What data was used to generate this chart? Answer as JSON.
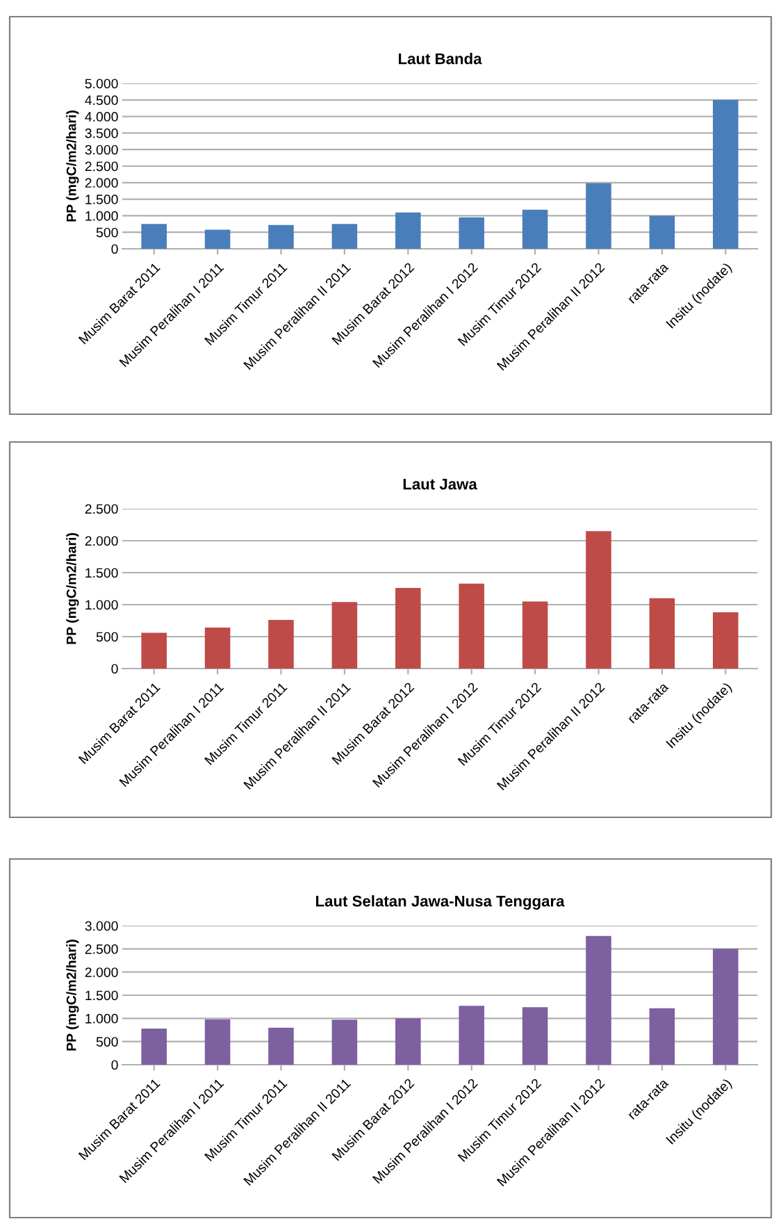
{
  "chart_data": [
    {
      "type": "bar",
      "title": "Laut Banda",
      "ylabel": "PP (mgC/m2/hari)",
      "categories": [
        "Musim Barat 2011",
        "Musim Peralihan I 2011",
        "Musim Timur 2011",
        "Musim Peralihan II 2011",
        "Musim Barat 2012",
        "Musim Peralihan I 2012",
        "Musim Timur 2012",
        "Musim Peralihan II 2012",
        "rata-rata",
        "Insitu (nodate)"
      ],
      "series": [
        {
          "color": "#4a7ebb",
          "values": [
            750,
            580,
            720,
            750,
            1100,
            950,
            1180,
            1980,
            1000,
            4500
          ]
        }
      ],
      "ylim": [
        0,
        5000
      ],
      "yticks": [
        0,
        500,
        {
          "value": 1000,
          "label": "1.000"
        },
        {
          "value": 1500,
          "label": "1.500"
        },
        {
          "value": 2000,
          "label": "2.000"
        },
        {
          "value": 2500,
          "label": "2.500"
        },
        {
          "value": 3000,
          "label": "3.000"
        },
        {
          "value": 3500,
          "label": "3.500"
        },
        {
          "value": 4000,
          "label": "4.000"
        },
        {
          "value": 4500,
          "label": "4.500"
        },
        {
          "value": 5000,
          "label": "5.000"
        }
      ],
      "grid": "y",
      "legend": false
    },
    {
      "type": "bar",
      "title": "Laut Jawa",
      "ylabel": "PP (mgC/m2/hari)",
      "categories": [
        "Musim Barat 2011",
        "Musim Peralihan I 2011",
        "Musim Timur 2011",
        "Musim Peralihan II 2011",
        "Musim Barat 2012",
        "Musim Peralihan I 2012",
        "Musim Timur 2012",
        "Musim Peralihan II 2012",
        "rata-rata",
        "Insitu (nodate)"
      ],
      "series": [
        {
          "color": "#be4b48",
          "values": [
            560,
            640,
            760,
            1040,
            1260,
            1330,
            1050,
            2150,
            1100,
            880
          ]
        }
      ],
      "ylim": [
        0,
        2500
      ],
      "yticks": [
        0,
        500,
        {
          "value": 1000,
          "label": "1.000"
        },
        {
          "value": 1500,
          "label": "1.500"
        },
        {
          "value": 2000,
          "label": "2.000"
        },
        {
          "value": 2500,
          "label": "2.500"
        }
      ],
      "grid": "y",
      "legend": false
    },
    {
      "type": "bar",
      "title": "Laut Selatan Jawa-Nusa Tenggara",
      "ylabel": "PP (mgC/m2/hari)",
      "categories": [
        "Musim Barat 2011",
        "Musim Peralihan I 2011",
        "Musim Timur 2011",
        "Musim Peralihan II 2011",
        "Musim Barat 2012",
        "Musim Peralihan I 2012",
        "Musim Timur 2012",
        "Musim Peralihan II 2012",
        "rata-rata",
        "Insitu (nodate)"
      ],
      "series": [
        {
          "color": "#7d60a0",
          "values": [
            780,
            980,
            800,
            970,
            1000,
            1270,
            1240,
            2780,
            1220,
            2500
          ]
        }
      ],
      "ylim": [
        0,
        3000
      ],
      "yticks": [
        0,
        500,
        {
          "value": 1000,
          "label": "1.000"
        },
        {
          "value": 1500,
          "label": "1.500"
        },
        {
          "value": 2000,
          "label": "2.000"
        },
        {
          "value": 2500,
          "label": "2.500"
        },
        {
          "value": 3000,
          "label": "3.000"
        }
      ],
      "grid": "y",
      "legend": false
    }
  ]
}
